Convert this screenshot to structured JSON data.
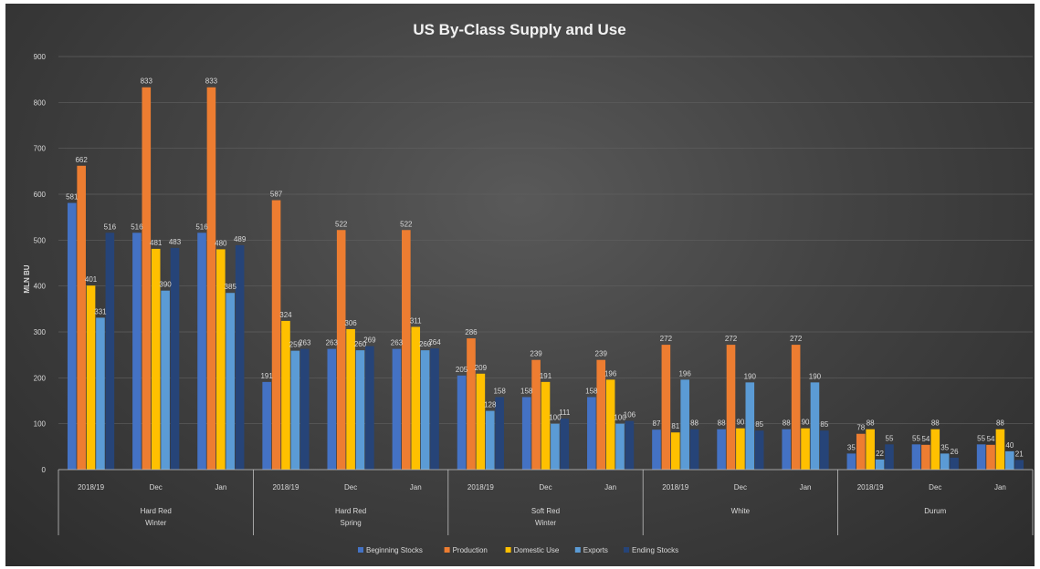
{
  "chart_data": {
    "type": "bar",
    "title": "US By-Class Supply and Use",
    "ylabel": "MLN BU",
    "ylim": [
      0,
      900
    ],
    "yticks": [
      0,
      100,
      200,
      300,
      400,
      500,
      600,
      700,
      800,
      900
    ],
    "grid": true,
    "legend_position": "bottom",
    "groups": [
      {
        "label": "Hard Red Winter",
        "label_lines": [
          "Hard Red",
          "Winter"
        ]
      },
      {
        "label": "Hard Red Spring",
        "label_lines": [
          "Hard Red",
          "Spring"
        ]
      },
      {
        "label": "Soft Red Winter",
        "label_lines": [
          "Soft Red",
          "Winter"
        ]
      },
      {
        "label": "White",
        "label_lines": [
          "White"
        ]
      },
      {
        "label": "Durum",
        "label_lines": [
          "Durum"
        ]
      }
    ],
    "subcategories": [
      "2018/19",
      "Dec",
      "Jan"
    ],
    "series": [
      {
        "name": "Beginning Stocks",
        "color": "#4472c4",
        "values": [
          581,
          516,
          516,
          191,
          263,
          263,
          205,
          158,
          158,
          87,
          88,
          88,
          35,
          55,
          55
        ]
      },
      {
        "name": "Production",
        "color": "#ed7d31",
        "values": [
          662,
          833,
          833,
          587,
          522,
          522,
          286,
          239,
          239,
          272,
          272,
          272,
          78,
          54,
          54
        ]
      },
      {
        "name": "Domestic Use",
        "color": "#ffc000",
        "values": [
          401,
          481,
          480,
          324,
          306,
          311,
          209,
          191,
          196,
          81,
          90,
          90,
          88,
          88,
          88
        ]
      },
      {
        "name": "Exports",
        "color": "#5b9bd5",
        "values": [
          331,
          390,
          385,
          259,
          260,
          260,
          128,
          100,
          100,
          196,
          190,
          190,
          22,
          35,
          40
        ]
      },
      {
        "name": "Ending Stocks",
        "color": "#264478",
        "values": [
          516,
          483,
          489,
          263,
          269,
          264,
          158,
          111,
          106,
          88,
          85,
          85,
          55,
          26,
          21
        ]
      }
    ],
    "data_labels": [
      [
        "581",
        "516",
        "516",
        "191",
        "263",
        "263",
        "205",
        "158",
        "158",
        "87",
        "88",
        "88",
        "35",
        "55",
        "55"
      ],
      [
        "662",
        "833",
        "833",
        "587",
        "522",
        "522",
        "286",
        "239",
        "239",
        "272",
        "272",
        "272",
        "78",
        "54",
        "54"
      ],
      [
        "401",
        "481",
        "480",
        "324",
        "306",
        "311",
        "209",
        "191",
        "196",
        "81",
        "90",
        "90",
        "88",
        "88",
        "88"
      ],
      [
        "331",
        "390",
        "385",
        "259",
        "260",
        "260",
        "128",
        "100",
        "100",
        "196",
        "190",
        "190",
        "22",
        "35",
        "40"
      ],
      [
        "516",
        "483",
        "489",
        "263",
        "269",
        "264",
        "158",
        "111",
        "106",
        "88",
        "85",
        "85",
        "55",
        "26",
        "21"
      ]
    ]
  }
}
